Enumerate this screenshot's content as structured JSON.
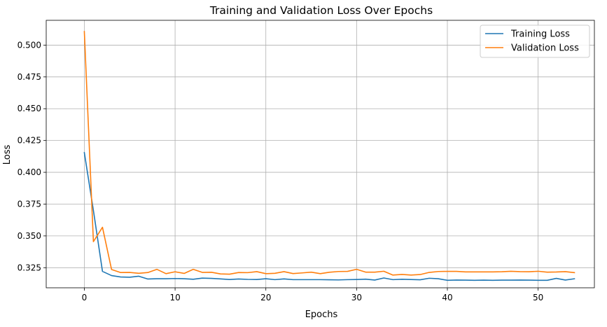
{
  "chart_data": {
    "type": "line",
    "title": "Training and Validation Loss Over Epochs",
    "xlabel": "Epochs",
    "ylabel": "Loss",
    "xlim": [
      -4.2,
      56.2
    ],
    "ylim": [
      0.3092,
      0.5195
    ],
    "xticks": [
      0,
      10,
      20,
      30,
      40,
      50
    ],
    "xtick_labels": [
      "0",
      "10",
      "20",
      "30",
      "40",
      "50"
    ],
    "yticks": [
      0.325,
      0.35,
      0.375,
      0.4,
      0.425,
      0.45,
      0.475,
      0.5
    ],
    "ytick_labels": [
      "0.325",
      "0.350",
      "0.375",
      "0.400",
      "0.425",
      "0.450",
      "0.475",
      "0.500"
    ],
    "grid": true,
    "legend_position": "top-right",
    "x": [
      0,
      1,
      2,
      3,
      4,
      5,
      6,
      7,
      8,
      9,
      10,
      11,
      12,
      13,
      14,
      15,
      16,
      17,
      18,
      19,
      20,
      21,
      22,
      23,
      24,
      25,
      26,
      27,
      28,
      29,
      30,
      31,
      32,
      33,
      34,
      35,
      36,
      37,
      38,
      39,
      40,
      41,
      42,
      43,
      44,
      45,
      46,
      47,
      48,
      49,
      50,
      51,
      52,
      53,
      54
    ],
    "series": [
      {
        "name": "Training Loss",
        "color": "#1f77b4",
        "values": [
          0.4155,
          0.37,
          0.3221,
          0.3188,
          0.3177,
          0.3175,
          0.3183,
          0.3161,
          0.3163,
          0.3163,
          0.3165,
          0.3163,
          0.3159,
          0.3168,
          0.3166,
          0.3162,
          0.3157,
          0.3161,
          0.3158,
          0.3157,
          0.3163,
          0.3156,
          0.3162,
          0.3156,
          0.3156,
          0.3156,
          0.3156,
          0.3155,
          0.3154,
          0.3156,
          0.3157,
          0.316,
          0.3153,
          0.3169,
          0.3156,
          0.3159,
          0.3157,
          0.3155,
          0.3167,
          0.3163,
          0.3151,
          0.3153,
          0.3152,
          0.3151,
          0.3152,
          0.3151,
          0.3152,
          0.3152,
          0.3153,
          0.3152,
          0.3151,
          0.3151,
          0.3166,
          0.3153,
          0.3163
        ]
      },
      {
        "name": "Validation Loss",
        "color": "#ff7f0e",
        "values": [
          0.5107,
          0.3455,
          0.3568,
          0.3236,
          0.3212,
          0.3213,
          0.3206,
          0.3212,
          0.3237,
          0.3203,
          0.3218,
          0.3205,
          0.3237,
          0.3213,
          0.3214,
          0.3201,
          0.3199,
          0.3212,
          0.3211,
          0.3219,
          0.3203,
          0.3206,
          0.3219,
          0.3204,
          0.3209,
          0.3215,
          0.3203,
          0.3214,
          0.322,
          0.3221,
          0.3237,
          0.3215,
          0.3215,
          0.3222,
          0.3192,
          0.3197,
          0.3192,
          0.3196,
          0.3213,
          0.322,
          0.3221,
          0.3221,
          0.3217,
          0.3217,
          0.3217,
          0.3217,
          0.3218,
          0.3222,
          0.3219,
          0.3218,
          0.3222,
          0.3215,
          0.3216,
          0.3219,
          0.3211
        ]
      }
    ]
  }
}
